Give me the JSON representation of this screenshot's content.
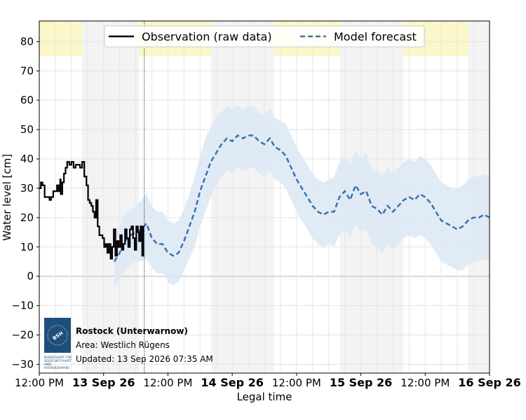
{
  "chart_data": {
    "type": "line",
    "title": "",
    "xlabel": "Legal time",
    "ylabel": "Water level [cm]",
    "ylim": [
      -33,
      87
    ],
    "yticks": [
      -30,
      -20,
      -10,
      0,
      10,
      20,
      30,
      40,
      50,
      60,
      70,
      80
    ],
    "xlim": [
      0,
      84
    ],
    "x_unit": "hours since 12 Sep 26 12:00 PM",
    "xticks": [
      {
        "x": 0,
        "label": "12:00 PM",
        "bold": false
      },
      {
        "x": 12,
        "label": "13 Sep 26",
        "bold": true
      },
      {
        "x": 24,
        "label": "12:00 PM",
        "bold": false
      },
      {
        "x": 36,
        "label": "14 Sep 26",
        "bold": true
      },
      {
        "x": 48,
        "label": "12:00 PM",
        "bold": false
      },
      {
        "x": 60,
        "label": "15 Sep 26",
        "bold": true
      },
      {
        "x": 72,
        "label": "12:00 PM",
        "bold": false
      },
      {
        "x": 84,
        "label": "16 Sep 26",
        "bold": true
      }
    ],
    "night_bands": [
      [
        8,
        18.6
      ],
      [
        32.1,
        43.8
      ],
      [
        56.1,
        67.9
      ],
      [
        80,
        84
      ]
    ],
    "warning_band": {
      "from": 75,
      "to": 87,
      "color": "#fbf7c8"
    },
    "now_x": 19.6,
    "legend": {
      "placement": "top-center",
      "entries": [
        "Observation (raw data)",
        "Model forecast"
      ]
    },
    "series": [
      {
        "name": "Observation (raw data)",
        "style": "solid",
        "color": "#000000",
        "points": [
          [
            0,
            30
          ],
          [
            0.3,
            32
          ],
          [
            0.6,
            31
          ],
          [
            1,
            27
          ],
          [
            1.5,
            27
          ],
          [
            1.9,
            26
          ],
          [
            2.2,
            27
          ],
          [
            2.6,
            29
          ],
          [
            3,
            29
          ],
          [
            3.3,
            31
          ],
          [
            3.6,
            29
          ],
          [
            3.9,
            33
          ],
          [
            4,
            28
          ],
          [
            4.3,
            32
          ],
          [
            4.6,
            35
          ],
          [
            4.9,
            37
          ],
          [
            5.2,
            39
          ],
          [
            5.6,
            38
          ],
          [
            6,
            39
          ],
          [
            6.4,
            37
          ],
          [
            6.8,
            38
          ],
          [
            7.2,
            38
          ],
          [
            7.6,
            37
          ],
          [
            8,
            39
          ],
          [
            8.4,
            34
          ],
          [
            8.8,
            31
          ],
          [
            9.1,
            26
          ],
          [
            9.4,
            25
          ],
          [
            9.7,
            24
          ],
          [
            10,
            22
          ],
          [
            10.3,
            20
          ],
          [
            10.6,
            26
          ],
          [
            10.9,
            17
          ],
          [
            11.2,
            14
          ],
          [
            11.5,
            14
          ],
          [
            11.8,
            13
          ],
          [
            12.1,
            10
          ],
          [
            12.4,
            11
          ],
          [
            12.7,
            8
          ],
          [
            13,
            11
          ],
          [
            13.3,
            6
          ],
          [
            13.6,
            10
          ],
          [
            13.9,
            16
          ],
          [
            14.2,
            7
          ],
          [
            14.5,
            12
          ],
          [
            14.8,
            10
          ],
          [
            15.1,
            14
          ],
          [
            15.4,
            9
          ],
          [
            15.7,
            11
          ],
          [
            16,
            16
          ],
          [
            16.3,
            13
          ],
          [
            16.6,
            10
          ],
          [
            16.9,
            16
          ],
          [
            17.2,
            17
          ],
          [
            17.5,
            13
          ],
          [
            17.8,
            9
          ],
          [
            18.1,
            17
          ],
          [
            18.4,
            15
          ],
          [
            18.6,
            12
          ],
          [
            18.9,
            17
          ],
          [
            19.2,
            7
          ],
          [
            19.4,
            17
          ]
        ]
      },
      {
        "name": "Model forecast",
        "style": "dashed",
        "color": "#3a73aa",
        "band_color": "#dce8f4",
        "points": [
          [
            14,
            5
          ],
          [
            15,
            8
          ],
          [
            16,
            12
          ],
          [
            17,
            14
          ],
          [
            18,
            15
          ],
          [
            19,
            16
          ],
          [
            20,
            18
          ],
          [
            21,
            13
          ],
          [
            22,
            11
          ],
          [
            23,
            11
          ],
          [
            24,
            8
          ],
          [
            25,
            7
          ],
          [
            26,
            8
          ],
          [
            27,
            12
          ],
          [
            28,
            17
          ],
          [
            29,
            22
          ],
          [
            30,
            29
          ],
          [
            31,
            34
          ],
          [
            32,
            39
          ],
          [
            33,
            42
          ],
          [
            34,
            45
          ],
          [
            35,
            47
          ],
          [
            36,
            46
          ],
          [
            37,
            48
          ],
          [
            38,
            47
          ],
          [
            39,
            48
          ],
          [
            40,
            48
          ],
          [
            41,
            46
          ],
          [
            42,
            45
          ],
          [
            43,
            47
          ],
          [
            44,
            44
          ],
          [
            45,
            43
          ],
          [
            46,
            41
          ],
          [
            47,
            37
          ],
          [
            48,
            33
          ],
          [
            49,
            30
          ],
          [
            50,
            27
          ],
          [
            51,
            24
          ],
          [
            52,
            22
          ],
          [
            53,
            21
          ],
          [
            54,
            22
          ],
          [
            55,
            22
          ],
          [
            56,
            27
          ],
          [
            57,
            29
          ],
          [
            58,
            26
          ],
          [
            59,
            31
          ],
          [
            60,
            28
          ],
          [
            61,
            29
          ],
          [
            62,
            24
          ],
          [
            63,
            23
          ],
          [
            64,
            21
          ],
          [
            65,
            24
          ],
          [
            66,
            22
          ],
          [
            67,
            24
          ],
          [
            68,
            26
          ],
          [
            69,
            27
          ],
          [
            70,
            26
          ],
          [
            71,
            28
          ],
          [
            72,
            27
          ],
          [
            73,
            25
          ],
          [
            74,
            22
          ],
          [
            75,
            19
          ],
          [
            76,
            18
          ],
          [
            77,
            17
          ],
          [
            78,
            16
          ],
          [
            79,
            17
          ],
          [
            80,
            19
          ],
          [
            81,
            20
          ],
          [
            82,
            20
          ],
          [
            83,
            21
          ],
          [
            84,
            20
          ]
        ],
        "lower": [
          [
            14,
            -4
          ],
          [
            15,
            -1
          ],
          [
            16,
            2
          ],
          [
            17,
            4
          ],
          [
            18,
            5
          ],
          [
            19,
            5
          ],
          [
            20,
            6
          ],
          [
            21,
            3
          ],
          [
            22,
            1
          ],
          [
            23,
            1
          ],
          [
            24,
            -2
          ],
          [
            25,
            -3
          ],
          [
            26,
            -2
          ],
          [
            27,
            2
          ],
          [
            28,
            6
          ],
          [
            29,
            10
          ],
          [
            30,
            17
          ],
          [
            31,
            22
          ],
          [
            32,
            27
          ],
          [
            33,
            31
          ],
          [
            34,
            34
          ],
          [
            35,
            36
          ],
          [
            36,
            35
          ],
          [
            37,
            37
          ],
          [
            38,
            36
          ],
          [
            39,
            37
          ],
          [
            40,
            37
          ],
          [
            41,
            35
          ],
          [
            42,
            34
          ],
          [
            43,
            36
          ],
          [
            44,
            33
          ],
          [
            45,
            32
          ],
          [
            46,
            30
          ],
          [
            47,
            26
          ],
          [
            48,
            22
          ],
          [
            49,
            19
          ],
          [
            50,
            16
          ],
          [
            51,
            13
          ],
          [
            52,
            11
          ],
          [
            53,
            10
          ],
          [
            54,
            11
          ],
          [
            55,
            10
          ],
          [
            56,
            14
          ],
          [
            57,
            16
          ],
          [
            58,
            13
          ],
          [
            59,
            18
          ],
          [
            60,
            15
          ],
          [
            61,
            16
          ],
          [
            62,
            11
          ],
          [
            63,
            10
          ],
          [
            64,
            8
          ],
          [
            65,
            11
          ],
          [
            66,
            9
          ],
          [
            67,
            11
          ],
          [
            68,
            13
          ],
          [
            69,
            14
          ],
          [
            70,
            13
          ],
          [
            71,
            14
          ],
          [
            72,
            13
          ],
          [
            73,
            11
          ],
          [
            74,
            8
          ],
          [
            75,
            5
          ],
          [
            76,
            4
          ],
          [
            77,
            3
          ],
          [
            78,
            2
          ],
          [
            79,
            2
          ],
          [
            80,
            4
          ],
          [
            81,
            5
          ],
          [
            82,
            5
          ],
          [
            83,
            6
          ],
          [
            84,
            5
          ]
        ],
        "upper": [
          [
            14,
            15
          ],
          [
            15,
            17
          ],
          [
            16,
            21
          ],
          [
            17,
            23
          ],
          [
            18,
            24
          ],
          [
            19,
            26
          ],
          [
            20,
            28
          ],
          [
            21,
            24
          ],
          [
            22,
            22
          ],
          [
            23,
            22
          ],
          [
            24,
            19
          ],
          [
            25,
            18
          ],
          [
            26,
            19
          ],
          [
            27,
            23
          ],
          [
            28,
            28
          ],
          [
            29,
            34
          ],
          [
            30,
            41
          ],
          [
            31,
            47
          ],
          [
            32,
            51
          ],
          [
            33,
            54
          ],
          [
            34,
            56
          ],
          [
            35,
            58
          ],
          [
            36,
            57
          ],
          [
            37,
            58
          ],
          [
            38,
            57
          ],
          [
            39,
            58
          ],
          [
            40,
            58
          ],
          [
            41,
            56
          ],
          [
            42,
            55
          ],
          [
            43,
            57
          ],
          [
            44,
            54
          ],
          [
            45,
            53
          ],
          [
            46,
            52
          ],
          [
            47,
            48
          ],
          [
            48,
            44
          ],
          [
            49,
            41
          ],
          [
            50,
            38
          ],
          [
            51,
            35
          ],
          [
            52,
            33
          ],
          [
            53,
            32
          ],
          [
            54,
            33
          ],
          [
            55,
            34
          ],
          [
            56,
            39
          ],
          [
            57,
            41
          ],
          [
            58,
            38
          ],
          [
            59,
            43
          ],
          [
            60,
            40
          ],
          [
            61,
            42
          ],
          [
            62,
            37
          ],
          [
            63,
            36
          ],
          [
            64,
            34
          ],
          [
            65,
            37
          ],
          [
            66,
            35
          ],
          [
            67,
            37
          ],
          [
            68,
            39
          ],
          [
            69,
            40
          ],
          [
            70,
            39
          ],
          [
            71,
            41
          ],
          [
            72,
            40
          ],
          [
            73,
            38
          ],
          [
            74,
            35
          ],
          [
            75,
            32
          ],
          [
            76,
            31
          ],
          [
            77,
            30
          ],
          [
            78,
            30
          ],
          [
            79,
            31
          ],
          [
            80,
            33
          ],
          [
            81,
            34
          ],
          [
            82,
            34
          ],
          [
            83,
            35
          ],
          [
            84,
            34
          ]
        ]
      }
    ]
  },
  "info_box": {
    "station": "Rostock (Unterwarnow)",
    "area": "Area: Westlich Rügens",
    "updated": "Updated: 13 Sep 2026 07:35 AM",
    "logo": {
      "name": "bsh-logo",
      "text": "BSH",
      "caption_lines": [
        "BUNDESAMT FÜR",
        "SEESCHIFFFAHRT",
        "UND",
        "HYDROGRAPHIE"
      ]
    }
  }
}
